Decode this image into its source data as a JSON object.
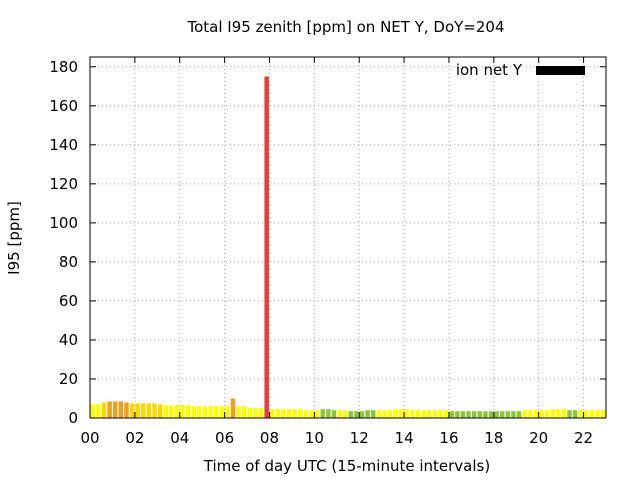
{
  "chart_data": {
    "type": "bar",
    "title": "Total I95 zenith [ppm] on NET Y, DoY=204",
    "xlabel": "Time of day UTC (15-minute intervals)",
    "ylabel": "I95 [ppm]",
    "xlim": [
      0,
      23
    ],
    "ylim": [
      0,
      185
    ],
    "x_ticks": [
      0,
      2,
      4,
      6,
      8,
      10,
      12,
      14,
      16,
      18,
      20,
      22
    ],
    "x_tick_labels": [
      "00",
      "02",
      "04",
      "06",
      "08",
      "10",
      "12",
      "14",
      "16",
      "18",
      "20",
      "22"
    ],
    "y_ticks": [
      0,
      20,
      40,
      60,
      80,
      100,
      120,
      140,
      160,
      180
    ],
    "y_tick_labels": [
      "0",
      "20",
      "40",
      "60",
      "80",
      "100",
      "120",
      "140",
      "160",
      "180"
    ],
    "grid": true,
    "legend": {
      "position": "top-right",
      "entries": [
        {
          "label": "ion net Y",
          "color": "#000000"
        }
      ]
    },
    "bar_width_hours": 0.2,
    "series": [
      {
        "bars": [
          {
            "x": 0.125,
            "v": 7,
            "c": "#ffff00"
          },
          {
            "x": 0.375,
            "v": 7,
            "c": "#ffff00"
          },
          {
            "x": 0.625,
            "v": 8,
            "c": "#ffd700"
          },
          {
            "x": 0.875,
            "v": 8.5,
            "c": "#f0a020"
          },
          {
            "x": 1.125,
            "v": 8.5,
            "c": "#f0a020"
          },
          {
            "x": 1.375,
            "v": 8.5,
            "c": "#f0a020"
          },
          {
            "x": 1.625,
            "v": 8,
            "c": "#f0a020"
          },
          {
            "x": 1.875,
            "v": 7.5,
            "c": "#ffd700"
          },
          {
            "x": 2.125,
            "v": 7.5,
            "c": "#ffd700"
          },
          {
            "x": 2.375,
            "v": 7.5,
            "c": "#ffd700"
          },
          {
            "x": 2.625,
            "v": 7.5,
            "c": "#ffd700"
          },
          {
            "x": 2.875,
            "v": 7.5,
            "c": "#ffd700"
          },
          {
            "x": 3.125,
            "v": 7,
            "c": "#ffd700"
          },
          {
            "x": 3.375,
            "v": 6.5,
            "c": "#ffff00"
          },
          {
            "x": 3.625,
            "v": 6.5,
            "c": "#ffff00"
          },
          {
            "x": 3.875,
            "v": 6.5,
            "c": "#ffff00"
          },
          {
            "x": 4.125,
            "v": 6.5,
            "c": "#ffff00"
          },
          {
            "x": 4.375,
            "v": 6.5,
            "c": "#ffff00"
          },
          {
            "x": 4.625,
            "v": 6,
            "c": "#ffff00"
          },
          {
            "x": 4.875,
            "v": 6,
            "c": "#ffff00"
          },
          {
            "x": 5.125,
            "v": 6,
            "c": "#ffff00"
          },
          {
            "x": 5.375,
            "v": 6,
            "c": "#ffff00"
          },
          {
            "x": 5.625,
            "v": 6,
            "c": "#ffff00"
          },
          {
            "x": 5.875,
            "v": 6,
            "c": "#ffff00"
          },
          {
            "x": 6.125,
            "v": 6,
            "c": "#ffff00"
          },
          {
            "x": 6.375,
            "v": 10,
            "c": "#f0a020"
          },
          {
            "x": 6.625,
            "v": 6,
            "c": "#ffff00"
          },
          {
            "x": 6.875,
            "v": 6,
            "c": "#ffff00"
          },
          {
            "x": 7.125,
            "v": 5,
            "c": "#ffff00"
          },
          {
            "x": 7.375,
            "v": 5,
            "c": "#ffff00"
          },
          {
            "x": 7.625,
            "v": 5,
            "c": "#ffff00"
          },
          {
            "x": 7.875,
            "v": 175,
            "c": "#e63c3c"
          },
          {
            "x": 8.125,
            "v": 4.5,
            "c": "#ffff00"
          },
          {
            "x": 8.375,
            "v": 4.5,
            "c": "#ffff00"
          },
          {
            "x": 8.625,
            "v": 4.5,
            "c": "#ffff00"
          },
          {
            "x": 8.875,
            "v": 4.5,
            "c": "#ffff00"
          },
          {
            "x": 9.125,
            "v": 4.5,
            "c": "#ffff00"
          },
          {
            "x": 9.375,
            "v": 4.5,
            "c": "#ffff00"
          },
          {
            "x": 9.625,
            "v": 4,
            "c": "#ffff00"
          },
          {
            "x": 9.875,
            "v": 4,
            "c": "#ffff00"
          },
          {
            "x": 10.125,
            "v": 4,
            "c": "#ffff00"
          },
          {
            "x": 10.375,
            "v": 4.5,
            "c": "#8cc43c"
          },
          {
            "x": 10.625,
            "v": 4.5,
            "c": "#8cc43c"
          },
          {
            "x": 10.875,
            "v": 4,
            "c": "#8cc43c"
          },
          {
            "x": 11.125,
            "v": 4,
            "c": "#ffff00"
          },
          {
            "x": 11.375,
            "v": 4,
            "c": "#ffff00"
          },
          {
            "x": 11.625,
            "v": 3.5,
            "c": "#8cc43c"
          },
          {
            "x": 11.875,
            "v": 3.5,
            "c": "#8cc43c"
          },
          {
            "x": 12.125,
            "v": 3.5,
            "c": "#8cc43c"
          },
          {
            "x": 12.375,
            "v": 4,
            "c": "#8cc43c"
          },
          {
            "x": 12.625,
            "v": 4,
            "c": "#8cc43c"
          },
          {
            "x": 12.875,
            "v": 4,
            "c": "#ffff00"
          },
          {
            "x": 13.125,
            "v": 4,
            "c": "#ffff00"
          },
          {
            "x": 13.375,
            "v": 4,
            "c": "#ffff00"
          },
          {
            "x": 13.625,
            "v": 4.5,
            "c": "#ffff00"
          },
          {
            "x": 13.875,
            "v": 4.5,
            "c": "#ffff00"
          },
          {
            "x": 14.125,
            "v": 4.5,
            "c": "#ffff00"
          },
          {
            "x": 14.375,
            "v": 4,
            "c": "#ffff00"
          },
          {
            "x": 14.625,
            "v": 4,
            "c": "#ffff00"
          },
          {
            "x": 14.875,
            "v": 4,
            "c": "#ffff00"
          },
          {
            "x": 15.125,
            "v": 4,
            "c": "#ffff00"
          },
          {
            "x": 15.375,
            "v": 4,
            "c": "#ffff00"
          },
          {
            "x": 15.625,
            "v": 4,
            "c": "#ffff00"
          },
          {
            "x": 15.875,
            "v": 4,
            "c": "#ffff00"
          },
          {
            "x": 16.125,
            "v": 3.5,
            "c": "#8cc43c"
          },
          {
            "x": 16.375,
            "v": 3.5,
            "c": "#8cc43c"
          },
          {
            "x": 16.625,
            "v": 3.5,
            "c": "#8cc43c"
          },
          {
            "x": 16.875,
            "v": 3.5,
            "c": "#8cc43c"
          },
          {
            "x": 17.125,
            "v": 3.5,
            "c": "#8cc43c"
          },
          {
            "x": 17.375,
            "v": 3.5,
            "c": "#8cc43c"
          },
          {
            "x": 17.625,
            "v": 3.5,
            "c": "#8cc43c"
          },
          {
            "x": 17.875,
            "v": 3.5,
            "c": "#8cc43c"
          },
          {
            "x": 18.125,
            "v": 3.5,
            "c": "#8cc43c"
          },
          {
            "x": 18.375,
            "v": 3.5,
            "c": "#8cc43c"
          },
          {
            "x": 18.625,
            "v": 3.5,
            "c": "#8cc43c"
          },
          {
            "x": 18.875,
            "v": 3.5,
            "c": "#8cc43c"
          },
          {
            "x": 19.125,
            "v": 3.5,
            "c": "#8cc43c"
          },
          {
            "x": 19.375,
            "v": 4,
            "c": "#ffff00"
          },
          {
            "x": 19.625,
            "v": 4,
            "c": "#ffff00"
          },
          {
            "x": 19.875,
            "v": 4,
            "c": "#ffff00"
          },
          {
            "x": 20.125,
            "v": 4,
            "c": "#ffff00"
          },
          {
            "x": 20.375,
            "v": 4,
            "c": "#ffff00"
          },
          {
            "x": 20.625,
            "v": 4.5,
            "c": "#ffff00"
          },
          {
            "x": 20.875,
            "v": 4.5,
            "c": "#ffff00"
          },
          {
            "x": 21.125,
            "v": 4.5,
            "c": "#ffff00"
          },
          {
            "x": 21.375,
            "v": 4,
            "c": "#8cc43c"
          },
          {
            "x": 21.625,
            "v": 4,
            "c": "#8cc43c"
          },
          {
            "x": 21.875,
            "v": 4,
            "c": "#ffff00"
          },
          {
            "x": 22.125,
            "v": 4,
            "c": "#ffff00"
          },
          {
            "x": 22.375,
            "v": 4,
            "c": "#ffff00"
          },
          {
            "x": 22.625,
            "v": 4,
            "c": "#ffff00"
          },
          {
            "x": 22.875,
            "v": 4,
            "c": "#ffff00"
          }
        ]
      }
    ]
  }
}
